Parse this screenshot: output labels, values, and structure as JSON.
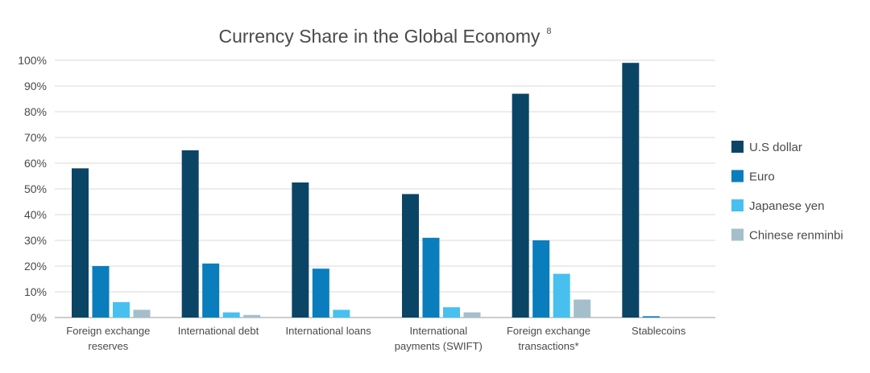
{
  "chart_data": {
    "type": "bar",
    "title": "Currency Share in the Global Economy",
    "title_superscript": "8",
    "ylim": [
      0,
      100
    ],
    "yticks": [
      0,
      10,
      20,
      30,
      40,
      50,
      60,
      70,
      80,
      90,
      100
    ],
    "ytick_labels": [
      "0%",
      "10%",
      "20%",
      "30%",
      "40%",
      "50%",
      "60%",
      "70%",
      "80%",
      "90%",
      "100%"
    ],
    "grid": true,
    "legend_position": "right",
    "categories": [
      [
        "Foreign exchange",
        "reserves"
      ],
      [
        "International debt"
      ],
      [
        "International loans"
      ],
      [
        "International",
        "payments (SWIFT)"
      ],
      [
        "Foreign exchange",
        "transactions*"
      ],
      [
        "Stablecoins"
      ]
    ],
    "series": [
      {
        "name": "U.S dollar",
        "color": "#0b4566",
        "values": [
          58,
          65,
          52.5,
          48,
          87,
          99
        ]
      },
      {
        "name": "Euro",
        "color": "#0a7dbd",
        "values": [
          20,
          21,
          19,
          31,
          30,
          0.5
        ]
      },
      {
        "name": "Japanese yen",
        "color": "#47c0f0",
        "values": [
          6,
          2,
          3,
          4,
          17,
          null
        ]
      },
      {
        "name": "Chinese renminbi",
        "color": "#a4bfcb",
        "values": [
          3,
          1,
          null,
          2,
          7,
          null
        ]
      }
    ]
  }
}
